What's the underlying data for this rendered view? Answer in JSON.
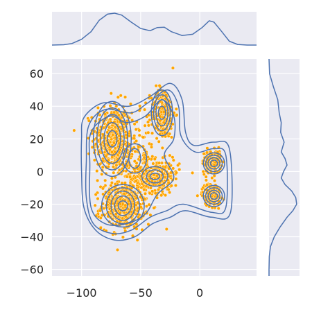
{
  "chart_data": {
    "type": "scatter",
    "subtype": "jointplot-kde",
    "title": "",
    "xlabel": "",
    "ylabel": "",
    "xlim": [
      -125,
      48
    ],
    "ylim": [
      -64,
      69
    ],
    "grid": true,
    "x_ticks": [
      -100,
      -50,
      0
    ],
    "x_tick_labels": [
      "−100",
      "−50",
      "0"
    ],
    "y_ticks": [
      -60,
      -40,
      -20,
      0,
      20,
      40,
      60
    ],
    "y_tick_labels": [
      "−60",
      "−40",
      "−20",
      "0",
      "20",
      "40",
      "60"
    ],
    "clusters": [
      {
        "center": [
          -74,
          20
        ],
        "spread": [
          8,
          11
        ],
        "count": 420
      },
      {
        "center": [
          -65,
          -21
        ],
        "spread": [
          9,
          7
        ],
        "count": 460
      },
      {
        "center": [
          -31,
          36
        ],
        "spread": [
          5,
          8
        ],
        "count": 200
      },
      {
        "center": [
          -35,
          -3
        ],
        "spread": [
          9,
          5
        ],
        "count": 200
      },
      {
        "center": [
          -53,
          5
        ],
        "spread": [
          12,
          14
        ],
        "count": 260
      },
      {
        "center": [
          10,
          6
        ],
        "spread": [
          4,
          3.5
        ],
        "count": 150
      },
      {
        "center": [
          10,
          -14
        ],
        "spread": [
          4,
          3.5
        ],
        "count": 150
      }
    ],
    "kde_contours": [
      {
        "center": [
          -74,
          20
        ],
        "radii": [
          [
            4,
            5
          ],
          [
            7,
            10
          ],
          [
            10,
            15
          ],
          [
            13,
            19
          ],
          [
            16,
            23
          ]
        ]
      },
      {
        "center": [
          -65,
          -21
        ],
        "radii": [
          [
            4,
            3
          ],
          [
            7,
            6
          ],
          [
            10,
            9
          ],
          [
            14,
            11
          ],
          [
            18,
            13
          ]
        ]
      },
      {
        "center": [
          -32,
          36
        ],
        "radii": [
          [
            3,
            4
          ],
          [
            5,
            8
          ],
          [
            7,
            11
          ],
          [
            9,
            14
          ]
        ]
      },
      {
        "center": [
          -38,
          -3
        ],
        "radii": [
          [
            4,
            2
          ],
          [
            7,
            4
          ],
          [
            11,
            6
          ]
        ]
      },
      {
        "center": [
          -55,
          8
        ],
        "radii": [
          [
            5,
            6
          ],
          [
            10,
            9
          ]
        ]
      },
      {
        "center": [
          12,
          5
        ],
        "radii": [
          [
            3,
            2
          ],
          [
            5,
            3.5
          ],
          [
            7,
            5
          ],
          [
            9,
            6.5
          ]
        ]
      },
      {
        "center": [
          12,
          -15
        ],
        "radii": [
          [
            3,
            2
          ],
          [
            5,
            3.5
          ],
          [
            7,
            5
          ],
          [
            9,
            6.5
          ]
        ]
      }
    ],
    "outer_contours": [
      [
        [
          -98,
          33
        ],
        [
          -82,
          42
        ],
        [
          -60,
          40
        ],
        [
          -42,
          46
        ],
        [
          -25,
          54
        ],
        [
          -15,
          44
        ],
        [
          -12,
          24
        ],
        [
          -5,
          16
        ],
        [
          12,
          18
        ],
        [
          25,
          14
        ],
        [
          26,
          -25
        ],
        [
          10,
          -28
        ],
        [
          -12,
          -24
        ],
        [
          -25,
          -28
        ],
        [
          -40,
          -32
        ],
        [
          -55,
          -40
        ],
        [
          -72,
          -42
        ],
        [
          -88,
          -36
        ],
        [
          -98,
          -22
        ],
        [
          -100,
          0
        ],
        [
          -100,
          20
        ]
      ],
      [
        [
          -94,
          28
        ],
        [
          -80,
          38
        ],
        [
          -58,
          36
        ],
        [
          -44,
          42
        ],
        [
          -27,
          50
        ],
        [
          -18,
          40
        ],
        [
          -16,
          22
        ],
        [
          -4,
          12
        ],
        [
          12,
          14
        ],
        [
          22,
          10
        ],
        [
          22,
          -22
        ],
        [
          10,
          -25
        ],
        [
          -14,
          -20
        ],
        [
          -28,
          -24
        ],
        [
          -42,
          -28
        ],
        [
          -58,
          -36
        ],
        [
          -74,
          -38
        ],
        [
          -90,
          -32
        ],
        [
          -96,
          -16
        ],
        [
          -96,
          6
        ]
      ],
      [
        [
          -92,
          24
        ],
        [
          -76,
          34
        ],
        [
          -62,
          30
        ],
        [
          -46,
          34
        ],
        [
          -32,
          44
        ],
        [
          -22,
          34
        ],
        [
          -22,
          20
        ],
        [
          -30,
          10
        ],
        [
          -22,
          -4
        ],
        [
          -36,
          -14
        ],
        [
          -46,
          -26
        ],
        [
          -62,
          -32
        ],
        [
          -80,
          -32
        ],
        [
          -92,
          -22
        ],
        [
          -93,
          4
        ]
      ]
    ],
    "top_marginal": {
      "x": [
        -125,
        -115,
        -108,
        -100,
        -92,
        -85,
        -78,
        -72,
        -66,
        -58,
        -50,
        -42,
        -36,
        -30,
        -24,
        -15,
        -6,
        2,
        8,
        12,
        18,
        25,
        32,
        40,
        48
      ],
      "density": [
        0,
        0.01,
        0.05,
        0.18,
        0.42,
        0.78,
        0.97,
        1.0,
        0.94,
        0.72,
        0.52,
        0.45,
        0.55,
        0.56,
        0.42,
        0.3,
        0.34,
        0.55,
        0.76,
        0.72,
        0.45,
        0.12,
        0.02,
        0,
        0
      ]
    },
    "right_marginal": {
      "y": [
        69,
        60,
        52,
        44,
        36,
        30,
        24,
        18,
        12,
        8,
        4,
        0,
        -4,
        -8,
        -12,
        -16,
        -20,
        -24,
        -28,
        -34,
        -40,
        -46,
        -52,
        -60,
        -64
      ],
      "density": [
        0,
        0.02,
        0.15,
        0.3,
        0.35,
        0.42,
        0.4,
        0.52,
        0.42,
        0.55,
        0.62,
        0.5,
        0.42,
        0.55,
        0.78,
        0.92,
        0.95,
        0.82,
        0.62,
        0.38,
        0.18,
        0.05,
        0.01,
        0,
        0
      ]
    },
    "colors": {
      "points": "#FFA500",
      "point_edge": "#ffffff",
      "contour": "#4C72B0",
      "panel_bg": "#EAEAF2",
      "grid": "#ffffff",
      "text": "#262626"
    }
  }
}
